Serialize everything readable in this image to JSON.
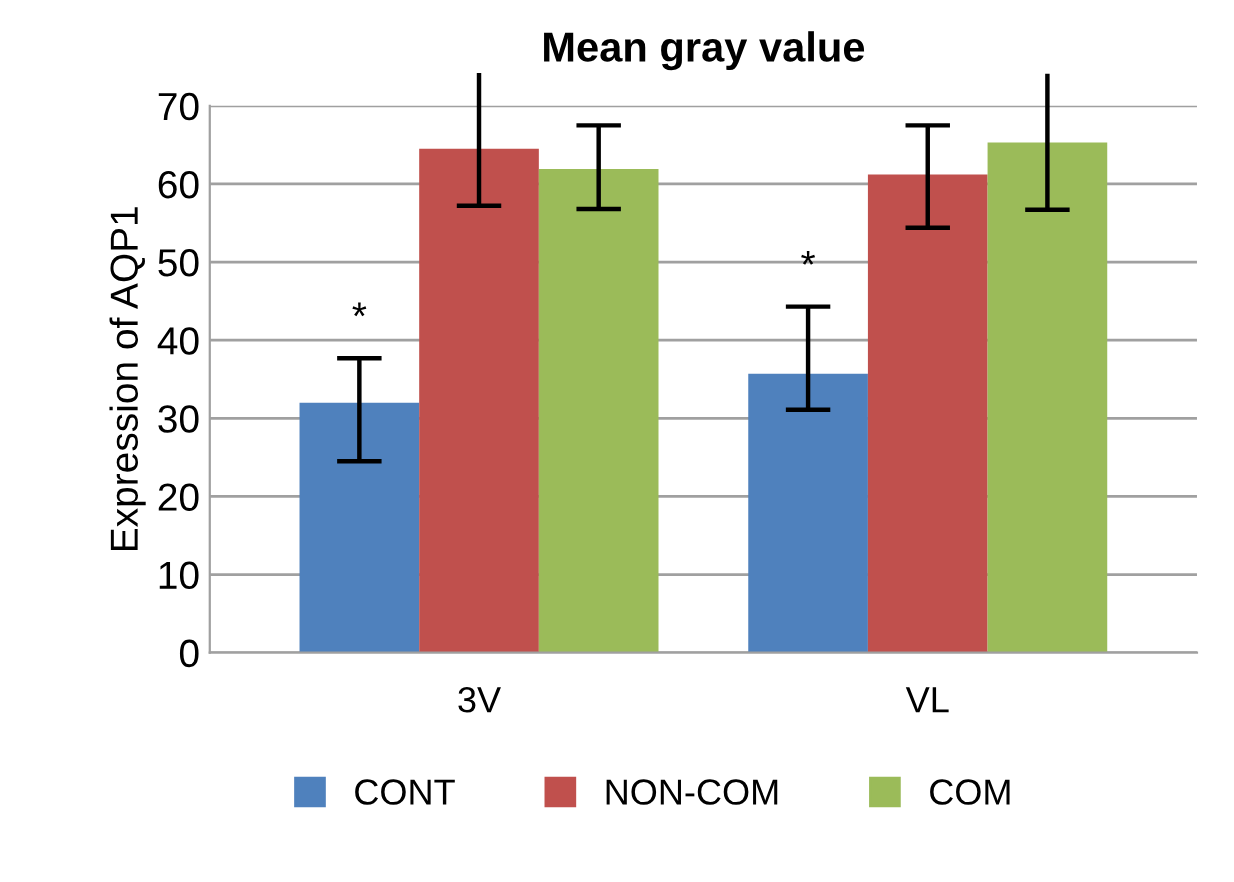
{
  "chart_data": {
    "type": "bar",
    "title": "Mean gray value",
    "ylabel": "Expression of AQP1",
    "categories": [
      "3V",
      "VL"
    ],
    "series": [
      {
        "name": "CONT",
        "color": "#4f81bd",
        "values": [
          32.0,
          35.7
        ],
        "errors": [
          [
            24.5,
            37.7
          ],
          [
            31.1,
            44.3
          ]
        ]
      },
      {
        "name": "NON-COM",
        "color": "#c0504d",
        "values": [
          64.5,
          61.2
        ],
        "errors": [
          [
            57.2,
            74.2
          ],
          [
            54.4,
            67.5
          ]
        ]
      },
      {
        "name": "COM",
        "color": "#9bbb59",
        "values": [
          61.9,
          65.3
        ],
        "errors": [
          [
            56.8,
            67.5
          ],
          [
            56.7,
            74.1
          ]
        ]
      }
    ],
    "annotations": [
      "*",
      "*"
    ],
    "ylim": [
      0,
      70
    ],
    "yticks": [
      0,
      10,
      20,
      30,
      40,
      50,
      60,
      70
    ],
    "grid": "y",
    "legend": "bottom"
  }
}
